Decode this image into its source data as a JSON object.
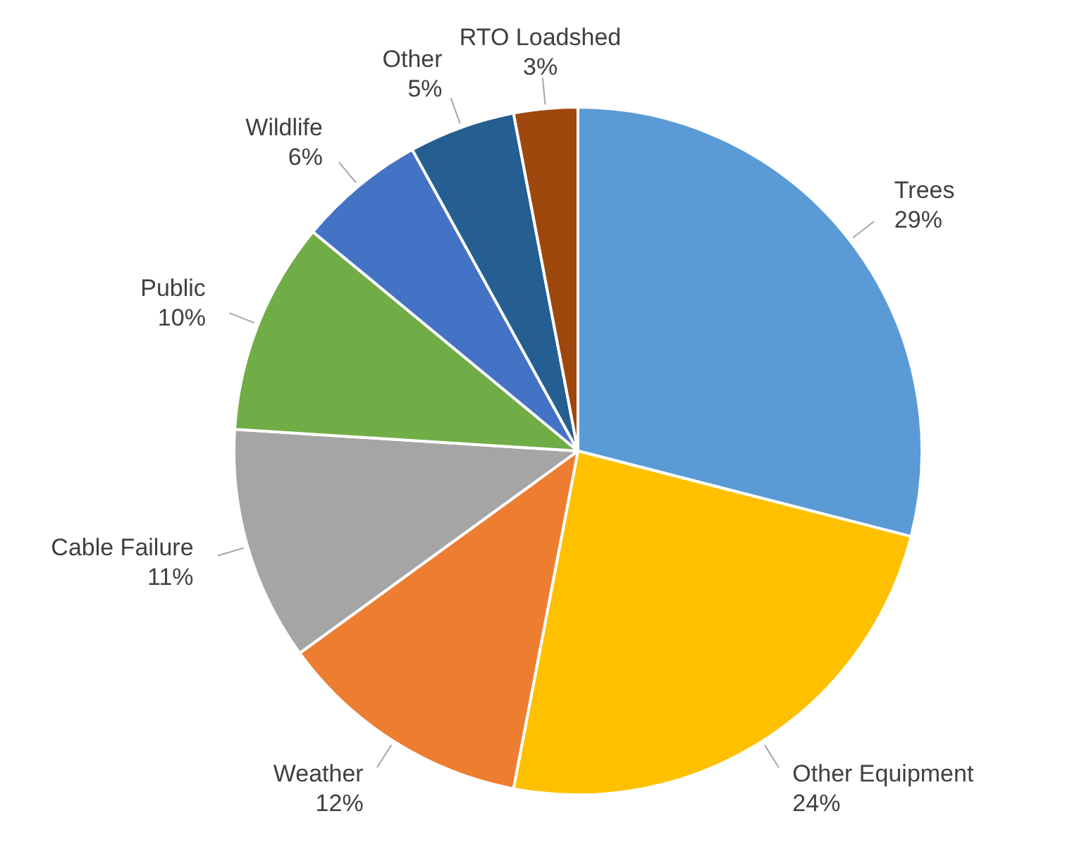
{
  "chart_data": {
    "type": "pie",
    "categories": [
      "Trees",
      "Other Equipment",
      "Weather",
      "Cable Failure",
      "Public",
      "Wildlife",
      "Other",
      "RTO Loadshed"
    ],
    "values": [
      29,
      24,
      12,
      11,
      10,
      6,
      5,
      3
    ],
    "value_labels": [
      "29%",
      "24%",
      "12%",
      "11%",
      "10%",
      "6%",
      "5%",
      "3%"
    ],
    "colors": [
      "#5b9bd5",
      "#ffc000",
      "#ed7d31",
      "#a5a5a5",
      "#70ad47",
      "#4472c4",
      "#255e91",
      "#9e480e"
    ],
    "legend": false
  }
}
